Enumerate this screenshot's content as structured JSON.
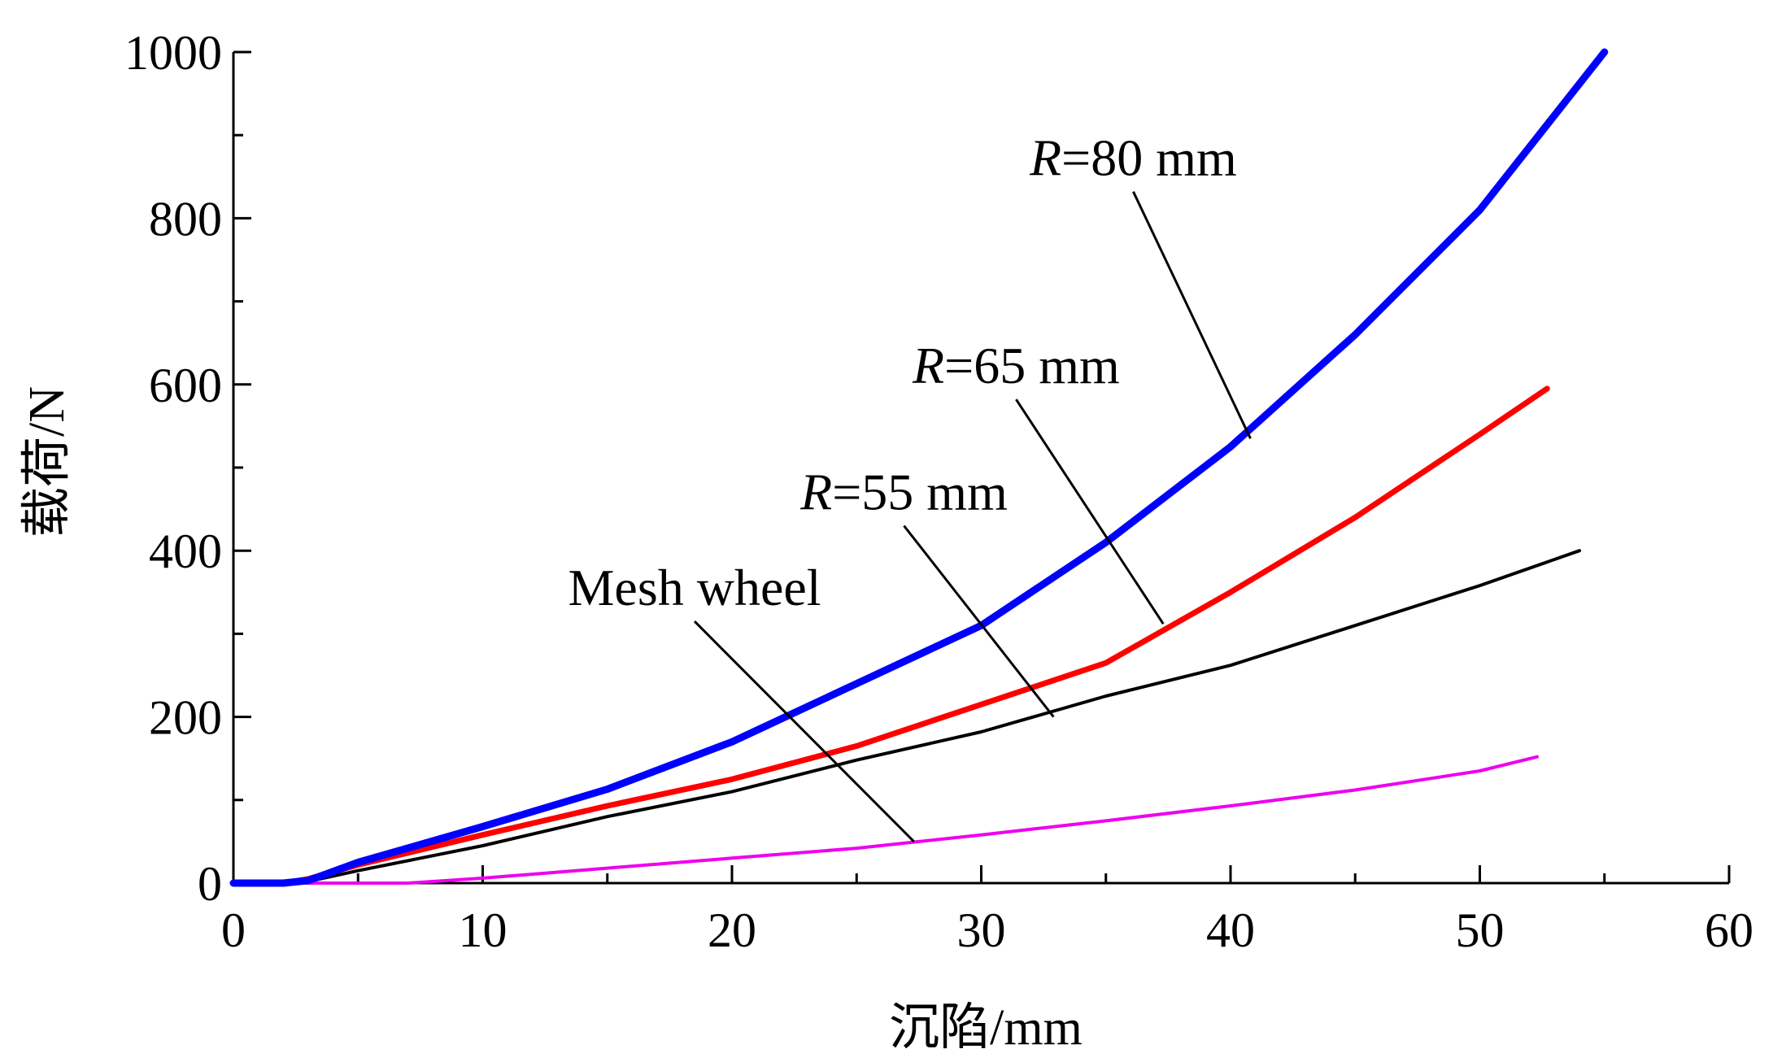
{
  "chart_data": {
    "type": "line",
    "title": "",
    "xlabel": "沉陷/mm",
    "ylabel": "载荷/N",
    "xlim": [
      0,
      60
    ],
    "ylim": [
      0,
      1000
    ],
    "xticks": [
      0,
      10,
      20,
      30,
      40,
      50,
      60
    ],
    "yticks": [
      0,
      200,
      400,
      600,
      800,
      1000
    ],
    "grid": false,
    "legend": "none",
    "series": [
      {
        "name": "R=80 mm",
        "color": "#0000ff",
        "x": [
          0,
          2,
          3,
          5,
          10,
          15,
          20,
          25,
          30,
          35,
          40,
          45,
          50,
          55
        ],
        "y": [
          0,
          0,
          3,
          25,
          68,
          113,
          170,
          240,
          310,
          410,
          525,
          660,
          810,
          1000
        ]
      },
      {
        "name": "R=65 mm",
        "color": "#ff0000",
        "x": [
          0,
          2,
          3,
          5,
          10,
          15,
          20,
          25,
          30,
          35,
          40,
          45,
          50,
          52.7
        ],
        "y": [
          0,
          0,
          5,
          22,
          58,
          93,
          125,
          165,
          215,
          265,
          350,
          440,
          540,
          595
        ]
      },
      {
        "name": "R=55 mm",
        "color": "#000000",
        "x": [
          0,
          2,
          3,
          5,
          10,
          15,
          20,
          25,
          30,
          35,
          40,
          45,
          50,
          54
        ],
        "y": [
          0,
          0,
          2,
          15,
          45,
          80,
          110,
          148,
          182,
          225,
          262,
          310,
          358,
          400
        ]
      },
      {
        "name": "Mesh wheel",
        "color": "#ee00ee",
        "x": [
          0,
          5,
          7,
          10,
          15,
          20,
          25,
          30,
          35,
          40,
          45,
          50,
          52.3
        ],
        "y": [
          0,
          0,
          0,
          6,
          18,
          30,
          42,
          58,
          75,
          93,
          112,
          135,
          152
        ]
      }
    ],
    "annotations": [
      {
        "text": "R=80 mm",
        "italic": "R",
        "rest": "=80 mm",
        "series": "R=80 mm",
        "point_x": 40.8,
        "point_y": 535,
        "label_anchor_x": 36.1,
        "label_anchor_y": 832
      },
      {
        "text": "R=65 mm",
        "italic": "R",
        "rest": "=65 mm",
        "series": "R=65 mm",
        "point_x": 37.3,
        "point_y": 312,
        "label_anchor_x": 31.4,
        "label_anchor_y": 582
      },
      {
        "text": "R=55 mm",
        "italic": "R",
        "rest": "=55 mm",
        "series": "R=55 mm",
        "point_x": 32.9,
        "point_y": 200,
        "label_anchor_x": 26.9,
        "label_anchor_y": 430
      },
      {
        "text": "Mesh wheel",
        "italic": "",
        "rest": "Mesh wheel",
        "series": "Mesh wheel",
        "point_x": 27.3,
        "point_y": 50,
        "label_anchor_x": 18.5,
        "label_anchor_y": 315
      }
    ]
  }
}
